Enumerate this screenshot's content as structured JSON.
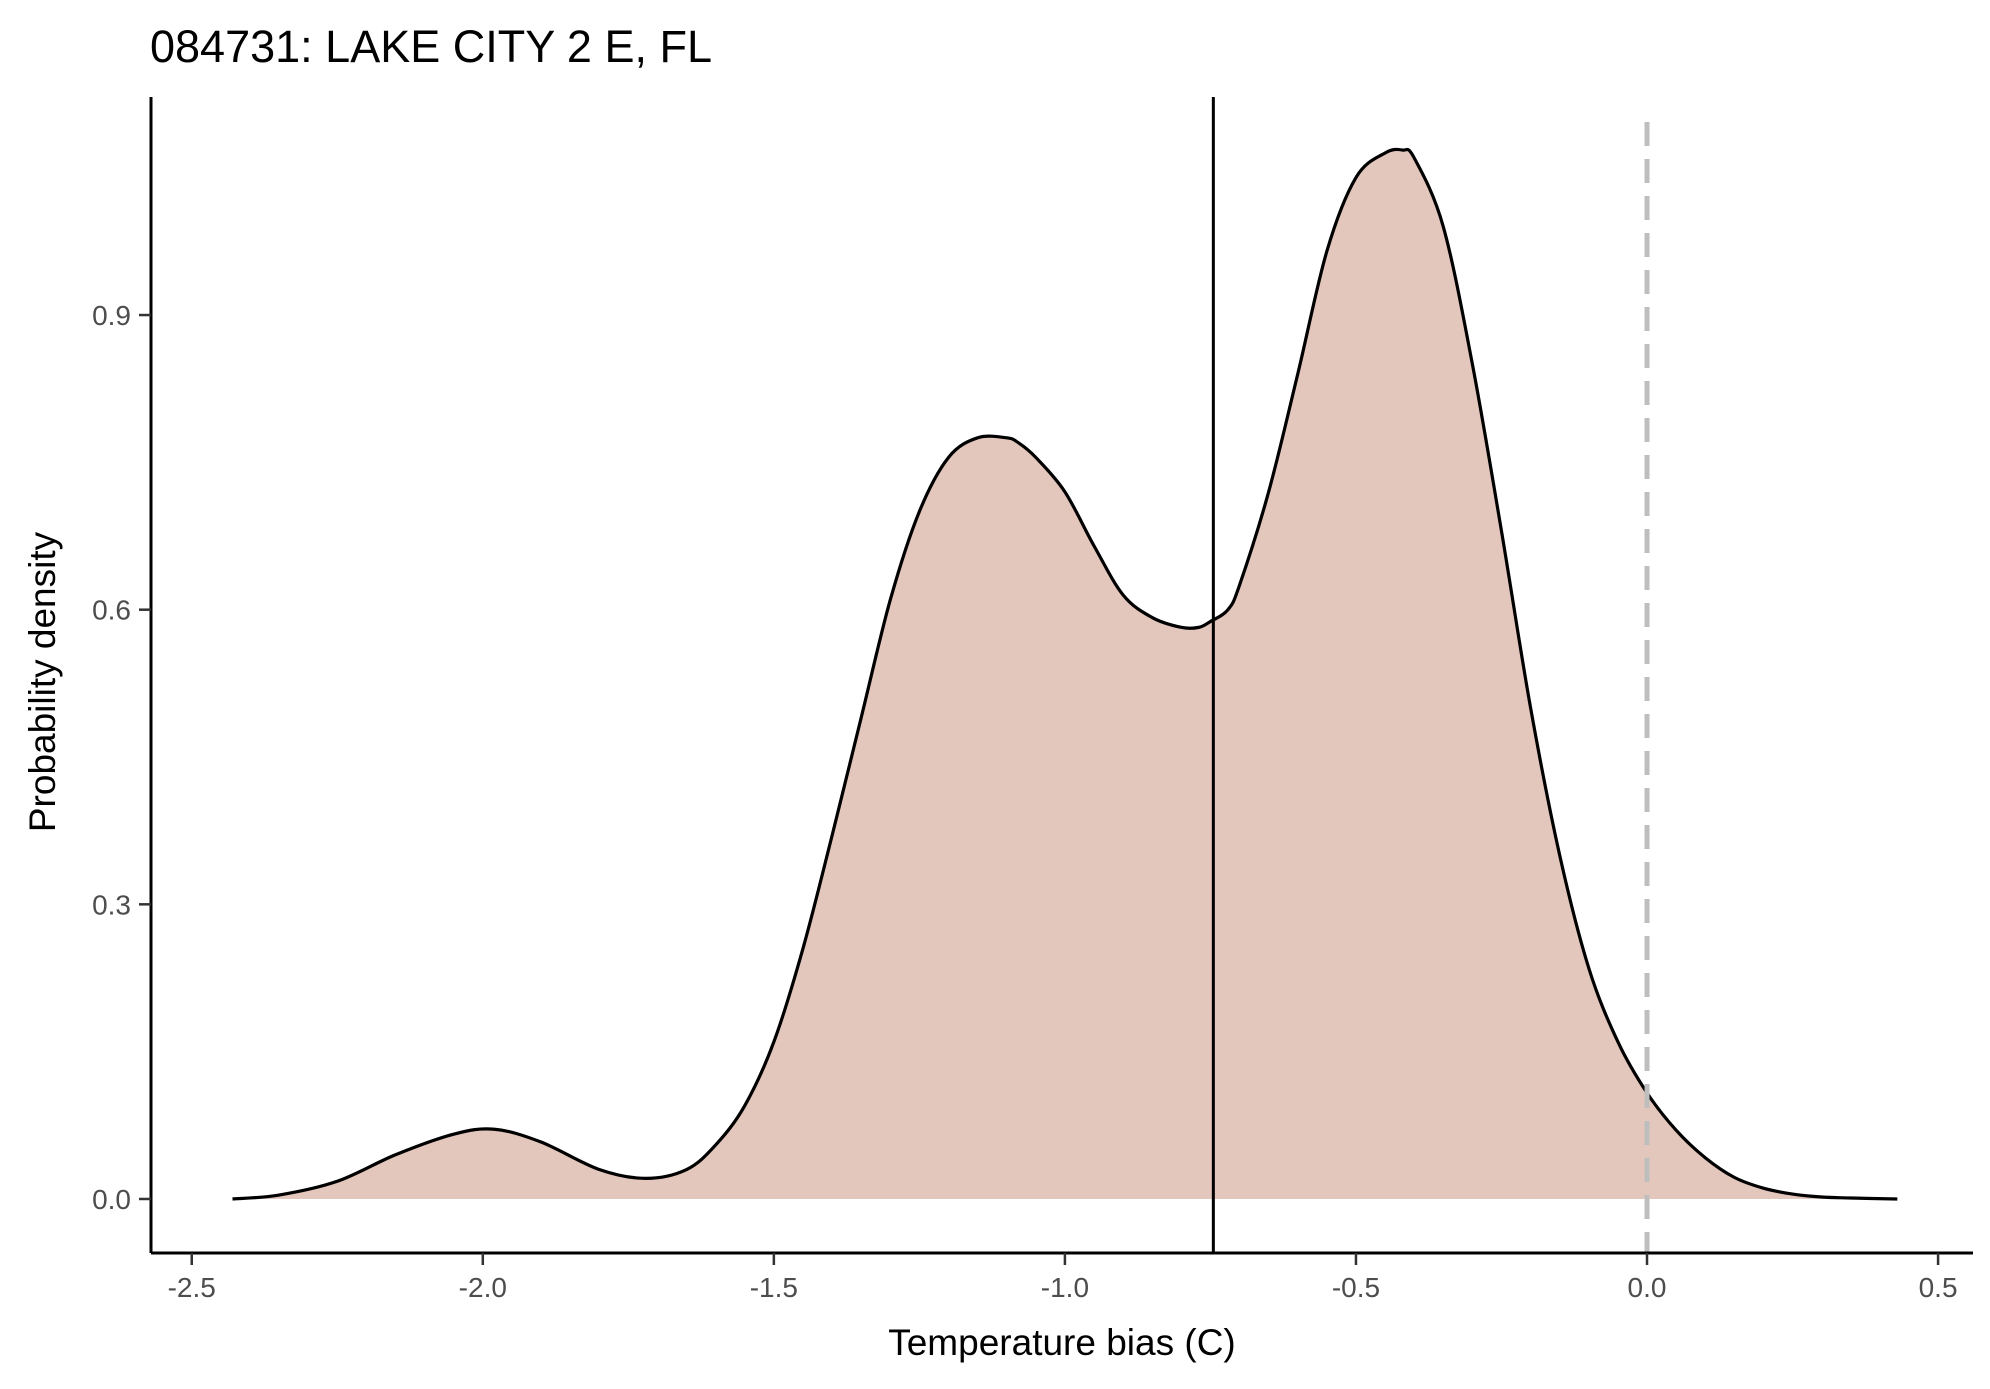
{
  "chart_data": {
    "type": "area",
    "title": "084731: LAKE CITY 2 E, FL",
    "xlabel": "Temperature bias (C)",
    "ylabel": "Probability density",
    "xlim": [
      -2.57,
      0.56
    ],
    "ylim": [
      -0.055,
      1.122
    ],
    "x_ticks": [
      -2.5,
      -2.0,
      -1.5,
      -1.0,
      -0.5,
      0.0,
      0.5
    ],
    "x_tick_labels": [
      "-2.5",
      "-2.0",
      "-1.5",
      "-1.0",
      "-0.5",
      "0.0",
      "0.5"
    ],
    "y_ticks": [
      0.0,
      0.3,
      0.6,
      0.9
    ],
    "y_tick_labels": [
      "0.0",
      "0.3",
      "0.6",
      "0.9"
    ],
    "grid": false,
    "legend": "none",
    "series": [
      {
        "x": [
          -2.43,
          -2.35,
          -2.25,
          -2.15,
          -2.05,
          -1.98,
          -1.9,
          -1.8,
          -1.72,
          -1.65,
          -1.6,
          -1.55,
          -1.5,
          -1.45,
          -1.4,
          -1.35,
          -1.3,
          -1.25,
          -1.2,
          -1.15,
          -1.1,
          -1.08,
          -1.05,
          -1.0,
          -0.95,
          -0.9,
          -0.85,
          -0.8,
          -0.77,
          -0.75,
          -0.72,
          -0.7,
          -0.65,
          -0.6,
          -0.55,
          -0.5,
          -0.45,
          -0.42,
          -0.4,
          -0.35,
          -0.3,
          -0.25,
          -0.2,
          -0.15,
          -0.1,
          -0.05,
          0.0,
          0.05,
          0.1,
          0.15,
          0.2,
          0.25,
          0.3,
          0.35,
          0.43
        ],
        "y": [
          0.0,
          0.004,
          0.018,
          0.045,
          0.066,
          0.071,
          0.058,
          0.03,
          0.021,
          0.03,
          0.055,
          0.095,
          0.16,
          0.255,
          0.37,
          0.49,
          0.61,
          0.7,
          0.755,
          0.775,
          0.775,
          0.77,
          0.755,
          0.72,
          0.665,
          0.615,
          0.592,
          0.582,
          0.582,
          0.588,
          0.6,
          0.625,
          0.72,
          0.84,
          0.965,
          1.04,
          1.065,
          1.068,
          1.06,
          0.99,
          0.85,
          0.68,
          0.5,
          0.35,
          0.235,
          0.16,
          0.108,
          0.07,
          0.042,
          0.022,
          0.011,
          0.005,
          0.002,
          0.001,
          0.0
        ],
        "fill": "#e3c6bc",
        "stroke": "#000000"
      }
    ],
    "reference_lines": [
      {
        "x": -0.745,
        "style": "solid",
        "color": "#000000"
      },
      {
        "x": 0.0,
        "style": "dashed",
        "color": "#bebebe"
      }
    ]
  }
}
